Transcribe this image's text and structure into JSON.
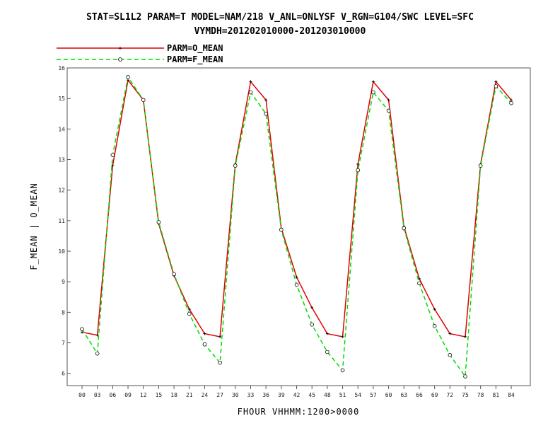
{
  "title_line1": "STAT=SL1L2 PARAM=T MODEL=NAM/218 V_ANL=ONLYSF V_RGN=G104/SWC LEVEL=SFC",
  "title_line2": "VYMDH=201202010000-201203010000",
  "colors": {
    "o_mean": "#e00000",
    "f_mean": "#00dd00",
    "axes": "#555555"
  },
  "chart_data": {
    "type": "line",
    "title": "STAT=SL1L2 PARAM=T MODEL=NAM/218 V_ANL=ONLYSF V_RGN=G104/SWC LEVEL=SFC",
    "subtitle": "VYMDH=201202010000-201203010000",
    "xlabel": "FHOUR  VHHMM:1200>0000",
    "ylabel": "F_MEAN  |  O_MEAN",
    "categories": [
      "00",
      "03",
      "06",
      "09",
      "12",
      "15",
      "18",
      "21",
      "24",
      "27",
      "30",
      "33",
      "36",
      "39",
      "42",
      "45",
      "48",
      "51",
      "54",
      "57",
      "60",
      "63",
      "66",
      "69",
      "72",
      "75",
      "78",
      "81",
      "84"
    ],
    "ylim": [
      5.6,
      16
    ],
    "yticks": [
      "6",
      "7",
      "8",
      "9",
      "10",
      "11",
      "12",
      "13",
      "14",
      "15",
      "16"
    ],
    "legend_position": "top-left",
    "series": [
      {
        "name": "PARM=O_MEAN",
        "style": "solid",
        "marker": "plus",
        "values": [
          7.35,
          7.25,
          12.8,
          15.6,
          14.95,
          10.9,
          9.2,
          8.1,
          7.3,
          7.2,
          12.85,
          15.55,
          14.95,
          10.75,
          9.15,
          8.15,
          7.3,
          7.2,
          12.85,
          15.55,
          14.95,
          10.8,
          9.1,
          8.1,
          7.3,
          7.2,
          12.85,
          15.55,
          14.95
        ]
      },
      {
        "name": "PARM=F_MEAN",
        "style": "dashed",
        "marker": "circle",
        "values": [
          7.45,
          6.65,
          13.15,
          15.7,
          14.95,
          10.95,
          9.25,
          7.95,
          6.95,
          6.35,
          12.8,
          15.2,
          14.5,
          10.7,
          8.9,
          7.6,
          6.7,
          6.1,
          12.65,
          15.2,
          14.6,
          10.75,
          8.95,
          7.55,
          6.6,
          5.9,
          12.8,
          15.4,
          14.85
        ]
      }
    ]
  }
}
